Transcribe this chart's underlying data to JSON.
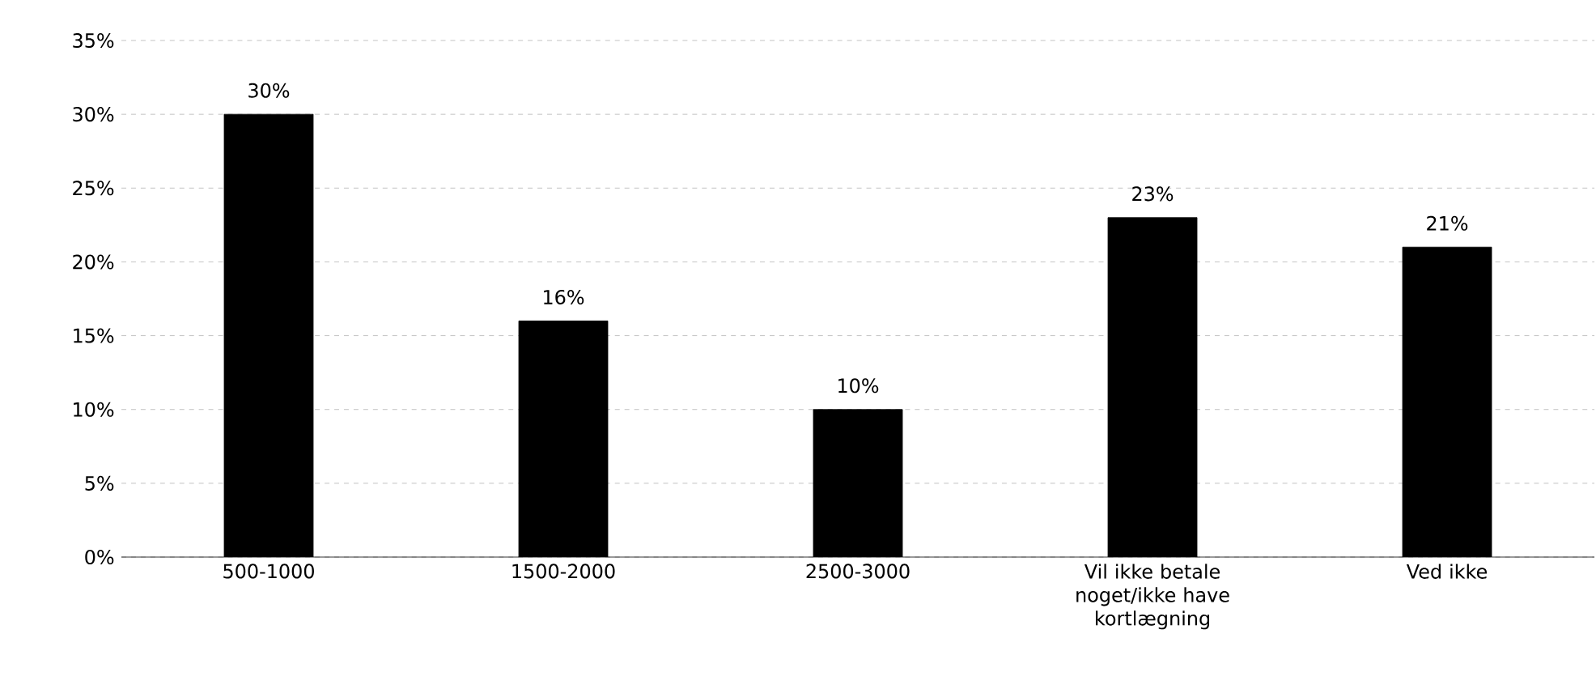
{
  "chart_data": {
    "type": "bar",
    "categories": [
      "500-1000",
      "1500-2000",
      "2500-3000",
      "Vil ikke betale noget/ikke have kortlægning",
      "Ved ikke"
    ],
    "values": [
      30,
      16,
      10,
      23,
      21
    ],
    "value_labels": [
      "30%",
      "16%",
      "10%",
      "23%",
      "21%"
    ],
    "color": "#000000",
    "ylim": [
      0,
      35
    ],
    "yticks": [
      {
        "value": 0,
        "label": "0%"
      },
      {
        "value": 5,
        "label": "5%"
      },
      {
        "value": 10,
        "label": "10%"
      },
      {
        "value": 15,
        "label": "15%"
      },
      {
        "value": 20,
        "label": "20%"
      },
      {
        "value": 25,
        "label": "25%"
      },
      {
        "value": 30,
        "label": "30%"
      },
      {
        "value": 35,
        "label": "35%"
      }
    ],
    "grid": "y"
  }
}
